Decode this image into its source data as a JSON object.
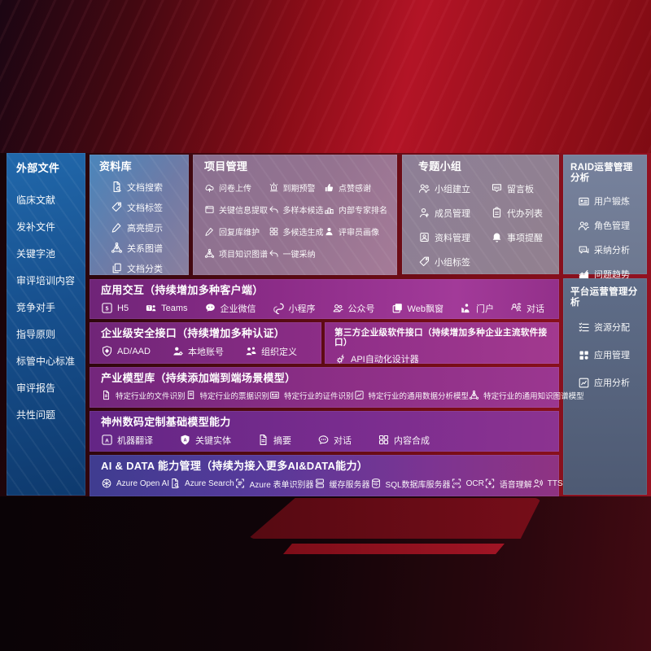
{
  "colors": {
    "accent_red": "#b31426",
    "sidebar_blue": "#2168ab",
    "library_blue": "#4a85bb",
    "interaction_magenta": "#a23a99",
    "ai_indigo": "#3f3c90",
    "ops_gray_blue": "#77829d"
  },
  "sidebar": {
    "title": "外部文件",
    "items": [
      "临床文献",
      "发补文件",
      "关键字池",
      "审评培训内容",
      "竞争对手",
      "指导原则",
      "标管中心标准",
      "审评报告",
      "共性问题"
    ]
  },
  "panels": {
    "library": {
      "title": "资料库",
      "items": [
        {
          "icon": "doc-search",
          "label": "文档搜索"
        },
        {
          "icon": "tag",
          "label": "文档标签"
        },
        {
          "icon": "pen",
          "label": "高亮提示"
        },
        {
          "icon": "network",
          "label": "关系图谱"
        },
        {
          "icon": "copy",
          "label": "文档分类"
        }
      ]
    },
    "project": {
      "title": "项目管理",
      "items": [
        {
          "icon": "cloud-upload",
          "label": "问卷上传"
        },
        {
          "icon": "alarm",
          "label": "到期预警"
        },
        {
          "icon": "thumb",
          "label": "点赞感谢"
        },
        {
          "icon": "window",
          "label": "关键信息提取"
        },
        {
          "icon": "reply",
          "label": "多样本候选"
        },
        {
          "icon": "podium",
          "label": "内部专家排名"
        },
        {
          "icon": "pen",
          "label": "回复库维护"
        },
        {
          "icon": "grid-arrows",
          "label": "多候选生成"
        },
        {
          "icon": "person",
          "label": "评审员画像"
        },
        {
          "icon": "network",
          "label": "项目知识图谱"
        },
        {
          "icon": "reply",
          "label": "一键采纳"
        }
      ]
    },
    "group": {
      "title": "专题小组",
      "items": [
        {
          "icon": "people",
          "label": "小组建立"
        },
        {
          "icon": "bbs",
          "label": "留言板"
        },
        {
          "icon": "person-add",
          "label": "成员管理"
        },
        {
          "icon": "clipboard",
          "label": "代办列表"
        },
        {
          "icon": "album",
          "label": "资料管理"
        },
        {
          "icon": "bell",
          "label": "事项提醒"
        },
        {
          "icon": "tag",
          "label": "小组标签"
        }
      ]
    },
    "raid": {
      "title": "RAID运营管理分析",
      "items": [
        {
          "icon": "id-card",
          "label": "用户锻炼"
        },
        {
          "icon": "people",
          "label": "角色管理"
        },
        {
          "icon": "chat-qa",
          "label": "采纳分析"
        },
        {
          "icon": "trend",
          "label": "问题趋势"
        }
      ]
    },
    "platform": {
      "title": "平台运营管理分析",
      "items": [
        {
          "icon": "checklist",
          "label": "资源分配"
        },
        {
          "icon": "apps",
          "label": "应用管理"
        },
        {
          "icon": "chart-box",
          "label": "应用分析"
        }
      ]
    },
    "interact": {
      "title": "应用交互（持续增加多种客户端）",
      "items": [
        {
          "icon": "h5",
          "label": "H5"
        },
        {
          "icon": "teams",
          "label": "Teams"
        },
        {
          "icon": "wechat",
          "label": "企业微信"
        },
        {
          "icon": "miniprogram",
          "label": "小程序"
        },
        {
          "icon": "people-bubble",
          "label": "公众号"
        },
        {
          "icon": "web-window",
          "label": "Web飘窗"
        },
        {
          "icon": "portal",
          "label": "门户"
        },
        {
          "icon": "dialog-heads",
          "label": "对话"
        }
      ]
    },
    "security": {
      "title": "企业级安全接口（持续增加多种认证）",
      "items": [
        {
          "icon": "shield",
          "label": "AD/AAD"
        },
        {
          "icon": "person-gear",
          "label": "本地账号"
        },
        {
          "icon": "org-people",
          "label": "组织定义"
        }
      ]
    },
    "third_party": {
      "title": "第三方企业级软件接口（持续增加多种企业主流软件接口）",
      "items": [
        {
          "icon": "api-gear",
          "label": "API自动化设计器"
        }
      ]
    },
    "industry": {
      "title": "产业模型库（持续添加端到端场景模型）",
      "items": [
        {
          "icon": "doc-lines",
          "label": "特定行业的文件识别"
        },
        {
          "icon": "receipt",
          "label": "特定行业的票据识别"
        },
        {
          "icon": "id-card",
          "label": "特定行业的证件识别"
        },
        {
          "icon": "chart-box",
          "label": "特定行业的通用数据分析模型"
        },
        {
          "icon": "network",
          "label": "特定行业的通用知识图谱模型"
        }
      ]
    },
    "digital_china": {
      "title": "神州数码定制基础模型能力",
      "items": [
        {
          "icon": "translate",
          "label": "机器翻译"
        },
        {
          "icon": "a-shield",
          "label": "关键实体"
        },
        {
          "icon": "doc-lines",
          "label": "摘要"
        },
        {
          "icon": "chat",
          "label": "对话"
        },
        {
          "icon": "grid-arrows",
          "label": "内容合成"
        }
      ]
    },
    "ai_data": {
      "title": "AI & DATA 能力管理（持续为接入更多AI&DATA能力）",
      "items": [
        {
          "icon": "openai",
          "label": "Azure Open AI"
        },
        {
          "icon": "doc-search",
          "label": "Azure Search"
        },
        {
          "icon": "form-scan",
          "label": "Azure 表单识别器"
        },
        {
          "icon": "server",
          "label": "缓存服务器"
        },
        {
          "icon": "database",
          "label": "SQL数据库服务器"
        },
        {
          "icon": "ocr-scan",
          "label": "OCR"
        },
        {
          "icon": "speech",
          "label": "语音理解"
        },
        {
          "icon": "tts",
          "label": "TTS"
        }
      ]
    }
  }
}
